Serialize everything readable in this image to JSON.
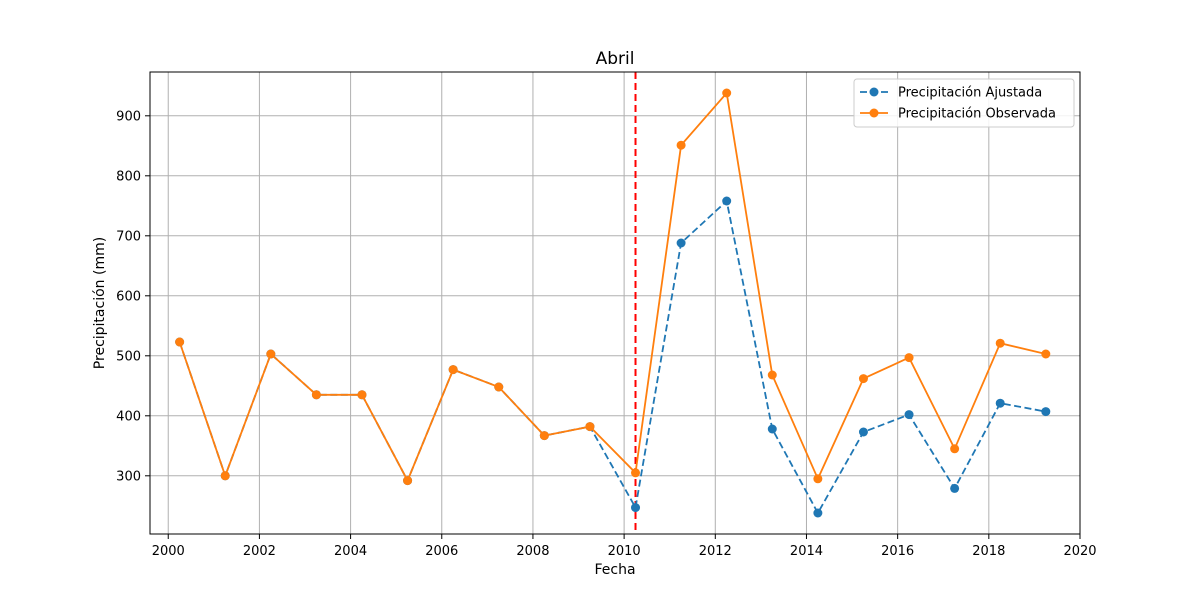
{
  "chart_data": {
    "type": "line",
    "title": "Abril",
    "xlabel": "Fecha",
    "ylabel": "Precipitación (mm)",
    "x": [
      2000.25,
      2001.25,
      2002.25,
      2003.25,
      2004.25,
      2005.25,
      2006.25,
      2007.25,
      2008.25,
      2009.25,
      2010.25,
      2011.25,
      2012.25,
      2013.25,
      2014.25,
      2015.25,
      2016.25,
      2017.25,
      2018.25,
      2019.25
    ],
    "series": [
      {
        "name": "Precipitación Ajustada",
        "color": "#1f77b4",
        "linestyle": "dashed",
        "marker": "circle",
        "values": [
          523,
          300,
          503,
          435,
          435,
          292,
          477,
          448,
          367,
          382,
          247,
          688,
          758,
          378,
          238,
          373,
          402,
          279,
          421,
          407
        ]
      },
      {
        "name": "Precipitación Observada",
        "color": "#ff7f0e",
        "linestyle": "solid",
        "marker": "circle",
        "values": [
          523,
          300,
          503,
          435,
          435,
          292,
          477,
          448,
          367,
          382,
          305,
          851,
          938,
          468,
          295,
          462,
          497,
          345,
          521,
          503
        ]
      }
    ],
    "vline": {
      "x": 2010.25,
      "color": "#ff0000",
      "linestyle": "dashed"
    },
    "xlim": [
      1999.6,
      2020.0
    ],
    "ylim": [
      203,
      973
    ],
    "xticks": [
      2000,
      2002,
      2004,
      2006,
      2008,
      2010,
      2012,
      2014,
      2016,
      2018,
      2020
    ],
    "yticks": [
      300,
      400,
      500,
      600,
      700,
      800,
      900
    ],
    "grid": true,
    "legend_position": "top-right"
  }
}
